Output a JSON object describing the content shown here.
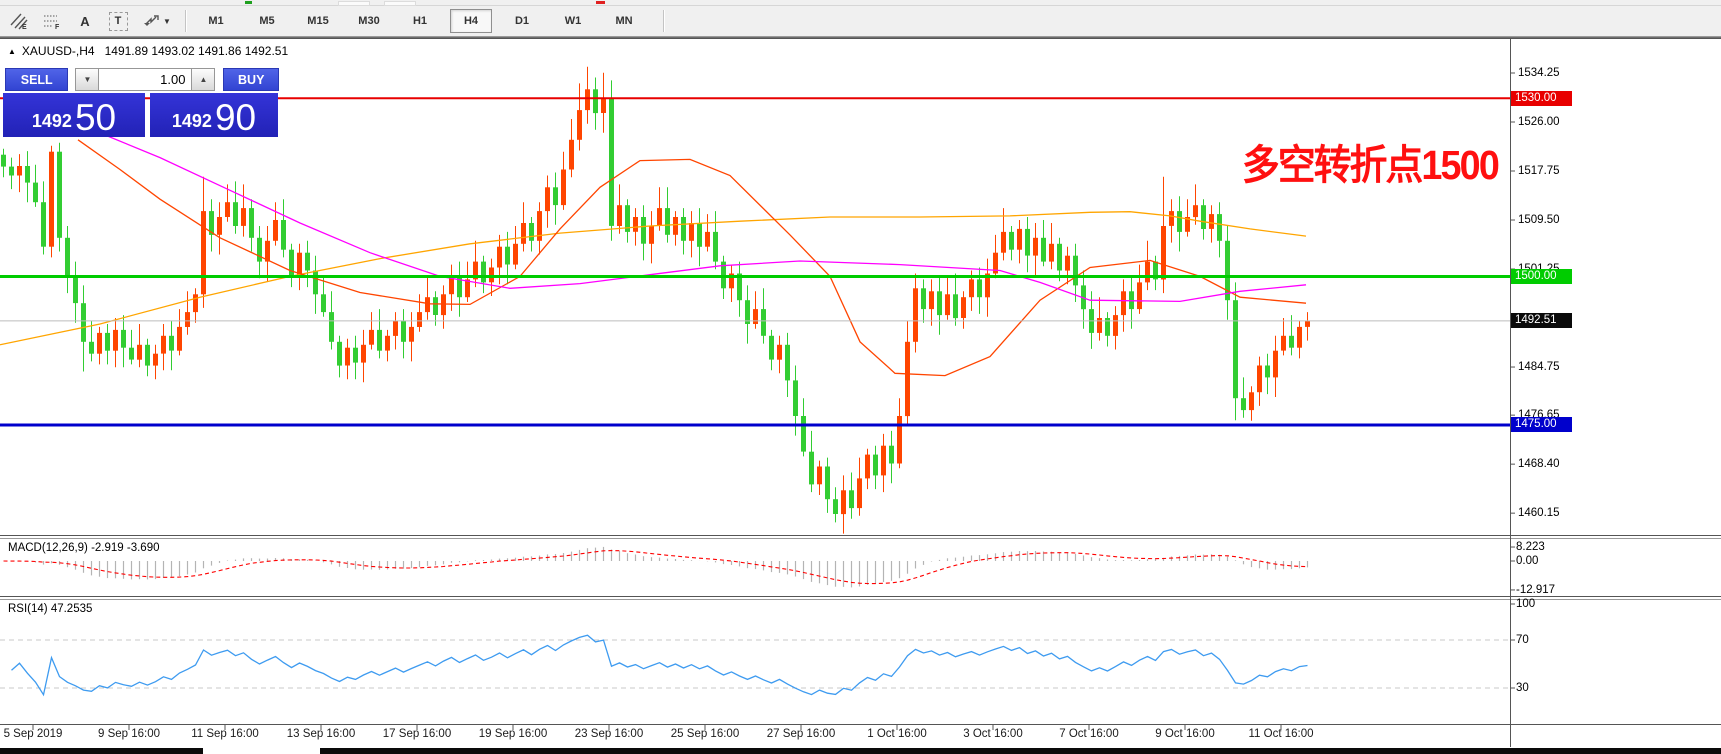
{
  "toolbar": {
    "tools": [
      {
        "name": "equidistant-channel",
        "glyph": "channel",
        "sub": "E"
      },
      {
        "name": "fibonacci-retracement",
        "glyph": "fibo",
        "sub": "F"
      },
      {
        "name": "text-label",
        "glyph": "A"
      },
      {
        "name": "text",
        "glyph": "T"
      },
      {
        "name": "arrow-tools",
        "glyph": "arrows",
        "has_dropdown": true
      }
    ],
    "timeframes": [
      "M1",
      "M5",
      "M15",
      "M30",
      "H1",
      "H4",
      "D1",
      "W1",
      "MN"
    ],
    "active_timeframe": "H4"
  },
  "chart": {
    "collapse_icon": "▲",
    "symbol_title": "XAUUSD-,H4",
    "ohlc_text": "1491.89 1493.02 1491.86 1492.51",
    "annotation_text": "多空转折点1500",
    "annotation_color": "#ff1010",
    "up_color": "#ff4500",
    "down_color": "#32cd32",
    "levels": [
      {
        "label": "1530.00",
        "price": 1530.0,
        "color": "#e80000",
        "thickness": 2
      },
      {
        "label": "1500.00",
        "price": 1500.0,
        "color": "#00cc00",
        "thickness": 3
      },
      {
        "label": "1475.00",
        "price": 1475.0,
        "color": "#0000cc",
        "thickness": 3
      }
    ],
    "current_price": {
      "label": "1492.51",
      "price": 1492.51,
      "line_color": "#bcbcbc",
      "badge_color": "#0a0a0a"
    },
    "y_ticks": [
      {
        "label": "1534.25",
        "price": 1534.25
      },
      {
        "label": "1526.00",
        "price": 1526.0
      },
      {
        "label": "1517.75",
        "price": 1517.75
      },
      {
        "label": "1509.50",
        "price": 1509.5
      },
      {
        "label": "1501.25",
        "price": 1501.25
      },
      {
        "label": "1484.75",
        "price": 1484.75
      },
      {
        "label": "1476.65",
        "price": 1476.65
      },
      {
        "label": "1468.40",
        "price": 1468.4
      },
      {
        "label": "1460.15",
        "price": 1460.15
      }
    ],
    "x_labels": [
      "5 Sep 2019",
      "9 Sep 16:00",
      "11 Sep 16:00",
      "13 Sep 16:00",
      "17 Sep 16:00",
      "19 Sep 16:00",
      "23 Sep 16:00",
      "25 Sep 16:00",
      "27 Sep 16:00",
      "1 Oct 16:00",
      "3 Oct 16:00",
      "7 Oct 16:00",
      "9 Oct 16:00",
      "11 Oct 16:00"
    ],
    "candles": {
      "first_open": 1520.5,
      "closes": [
        1518.5,
        1517.0,
        1518.6,
        1515.8,
        1512.5,
        1505.0,
        1521.0,
        1506.5,
        1500.0,
        1495.5,
        1489.0,
        1487.0,
        1490.5,
        1487.5,
        1491.0,
        1488.0,
        1486.0,
        1488.5,
        1485.0,
        1487.0,
        1490.0,
        1487.5,
        1491.5,
        1494.0,
        1497.0,
        1511.0,
        1507.0,
        1510.0,
        1512.5,
        1508.5,
        1511.5,
        1506.5,
        1502.5,
        1506.0,
        1509.5,
        1504.5,
        1500.0,
        1504.0,
        1501.0,
        1497.0,
        1494.0,
        1489.0,
        1485.0,
        1488.0,
        1485.5,
        1488.5,
        1491.0,
        1487.5,
        1490.0,
        1492.5,
        1489.0,
        1491.5,
        1494.0,
        1496.5,
        1493.5,
        1497.0,
        1500.0,
        1496.5,
        1499.5,
        1502.5,
        1499.0,
        1501.5,
        1505.0,
        1502.0,
        1505.5,
        1509.0,
        1506.0,
        1511.0,
        1515.0,
        1512.0,
        1518.0,
        1523.0,
        1528.0,
        1531.5,
        1527.5,
        1530.0,
        1508.5,
        1512.0,
        1507.5,
        1510.0,
        1505.5,
        1508.5,
        1511.5,
        1507.0,
        1510.0,
        1506.0,
        1509.0,
        1505.0,
        1507.5,
        1502.5,
        1498.0,
        1500.5,
        1496.0,
        1492.0,
        1494.5,
        1490.0,
        1486.0,
        1488.5,
        1482.5,
        1476.5,
        1470.5,
        1465.0,
        1468.0,
        1462.5,
        1460.0,
        1464.0,
        1461.0,
        1466.0,
        1470.0,
        1466.5,
        1471.5,
        1468.5,
        1476.5,
        1489.0,
        1498.0,
        1494.5,
        1497.5,
        1493.5,
        1497.0,
        1493.0,
        1496.5,
        1499.5,
        1496.5,
        1500.5,
        1504.0,
        1507.5,
        1504.5,
        1508.0,
        1503.5,
        1506.5,
        1502.5,
        1505.5,
        1501.0,
        1503.5,
        1498.5,
        1494.5,
        1490.5,
        1493.0,
        1490.0,
        1493.5,
        1497.5,
        1494.5,
        1499.0,
        1502.5,
        1499.5,
        1508.5,
        1511.0,
        1507.5,
        1510.0,
        1512.0,
        1508.0,
        1510.5,
        1506.0,
        1496.0,
        1479.5,
        1477.5,
        1480.5,
        1485.0,
        1483.0,
        1487.5,
        1490.0,
        1488.0,
        1491.5,
        1492.5
      ],
      "wick_overrides": {
        "10": {
          "low": 1484.0
        },
        "18": {
          "low": 1483.2
        },
        "25": {
          "high": 1516.8
        },
        "30": {
          "high": 1515.5
        },
        "42": {
          "low": 1483.0
        },
        "72": {
          "high": 1532.5
        },
        "73": {
          "high": 1535.3
        },
        "75": {
          "high": 1534.3
        },
        "76": {
          "low": 1506.0
        },
        "82": {
          "high": 1515.0
        },
        "104": {
          "low": 1458.6
        },
        "106": {
          "low": 1459.2
        },
        "114": {
          "high": 1500.5
        },
        "125": {
          "high": 1511.5
        },
        "136": {
          "low": 1487.8
        },
        "145": {
          "high": 1516.8
        },
        "154": {
          "low": 1475.8
        }
      }
    },
    "moving_averages": [
      {
        "name": "ma-orange",
        "color": "#ffa500",
        "points": [
          [
            0,
            1488.5
          ],
          [
            100,
            1492
          ],
          [
            200,
            1496.5
          ],
          [
            290,
            1500
          ],
          [
            380,
            1503
          ],
          [
            470,
            1505.5
          ],
          [
            560,
            1507.3
          ],
          [
            650,
            1508.5
          ],
          [
            740,
            1509.3
          ],
          [
            830,
            1510
          ],
          [
            920,
            1510
          ],
          [
            1010,
            1510.2
          ],
          [
            1090,
            1510.8
          ],
          [
            1130,
            1510.9
          ],
          [
            1170,
            1510.2
          ],
          [
            1200,
            1509.3
          ],
          [
            1250,
            1508
          ],
          [
            1306,
            1506.8
          ]
        ]
      },
      {
        "name": "ma-red",
        "color": "#ff4500",
        "points": [
          [
            78,
            1523
          ],
          [
            120,
            1518
          ],
          [
            160,
            1513
          ],
          [
            220,
            1506.5
          ],
          [
            290,
            1501
          ],
          [
            360,
            1497.3
          ],
          [
            430,
            1495.4
          ],
          [
            470,
            1495.3
          ],
          [
            520,
            1500
          ],
          [
            560,
            1508
          ],
          [
            600,
            1515
          ],
          [
            640,
            1519.5
          ],
          [
            690,
            1519.7
          ],
          [
            730,
            1517
          ],
          [
            790,
            1507
          ],
          [
            830,
            1500
          ],
          [
            860,
            1489
          ],
          [
            895,
            1483.7
          ],
          [
            945,
            1483.3
          ],
          [
            990,
            1486.5
          ],
          [
            1040,
            1496
          ],
          [
            1090,
            1501.5
          ],
          [
            1150,
            1502.7
          ],
          [
            1200,
            1500
          ],
          [
            1240,
            1496.5
          ],
          [
            1306,
            1495.5
          ]
        ]
      },
      {
        "name": "ma-magenta",
        "color": "#ff00ff",
        "points": [
          [
            95,
            1524.5
          ],
          [
            160,
            1520
          ],
          [
            230,
            1514.5
          ],
          [
            300,
            1509
          ],
          [
            370,
            1504
          ],
          [
            440,
            1500
          ],
          [
            510,
            1498
          ],
          [
            580,
            1498.8
          ],
          [
            650,
            1500.3
          ],
          [
            720,
            1501.8
          ],
          [
            800,
            1502.6
          ],
          [
            900,
            1502
          ],
          [
            1000,
            1501
          ],
          [
            1040,
            1499
          ],
          [
            1090,
            1496
          ],
          [
            1180,
            1495.8
          ],
          [
            1240,
            1497.5
          ],
          [
            1306,
            1498.6
          ]
        ]
      }
    ]
  },
  "trade_panel": {
    "sell_label": "SELL",
    "buy_label": "BUY",
    "volume": "1.00",
    "spinner_down_icon": "▼",
    "spinner_up_icon": "▲",
    "sell_price_main": "1492",
    "sell_price_pips": "50",
    "buy_price_main": "1492",
    "buy_price_pips": "90"
  },
  "macd_panel": {
    "label": "MACD(12,26,9) -2.919 -3.690",
    "fast": 12,
    "slow": 26,
    "signal": 9,
    "histogram_color": "#b4b4b4",
    "signal_color": "#ff0000",
    "scale_labels": [
      {
        "label": "8.223",
        "value": 8.223
      },
      {
        "label": "0.00",
        "value": 0
      },
      {
        "label": "-12.917",
        "value": -12.917
      }
    ]
  },
  "rsi_panel": {
    "label": "RSI(14) 47.2535",
    "period": 14,
    "line_color": "#3e9bf0",
    "level_lines": [
      70,
      30
    ],
    "scale_labels": [
      {
        "label": "100",
        "value": 100
      },
      {
        "label": "70",
        "value": 70
      },
      {
        "label": "30",
        "value": 30
      }
    ]
  }
}
